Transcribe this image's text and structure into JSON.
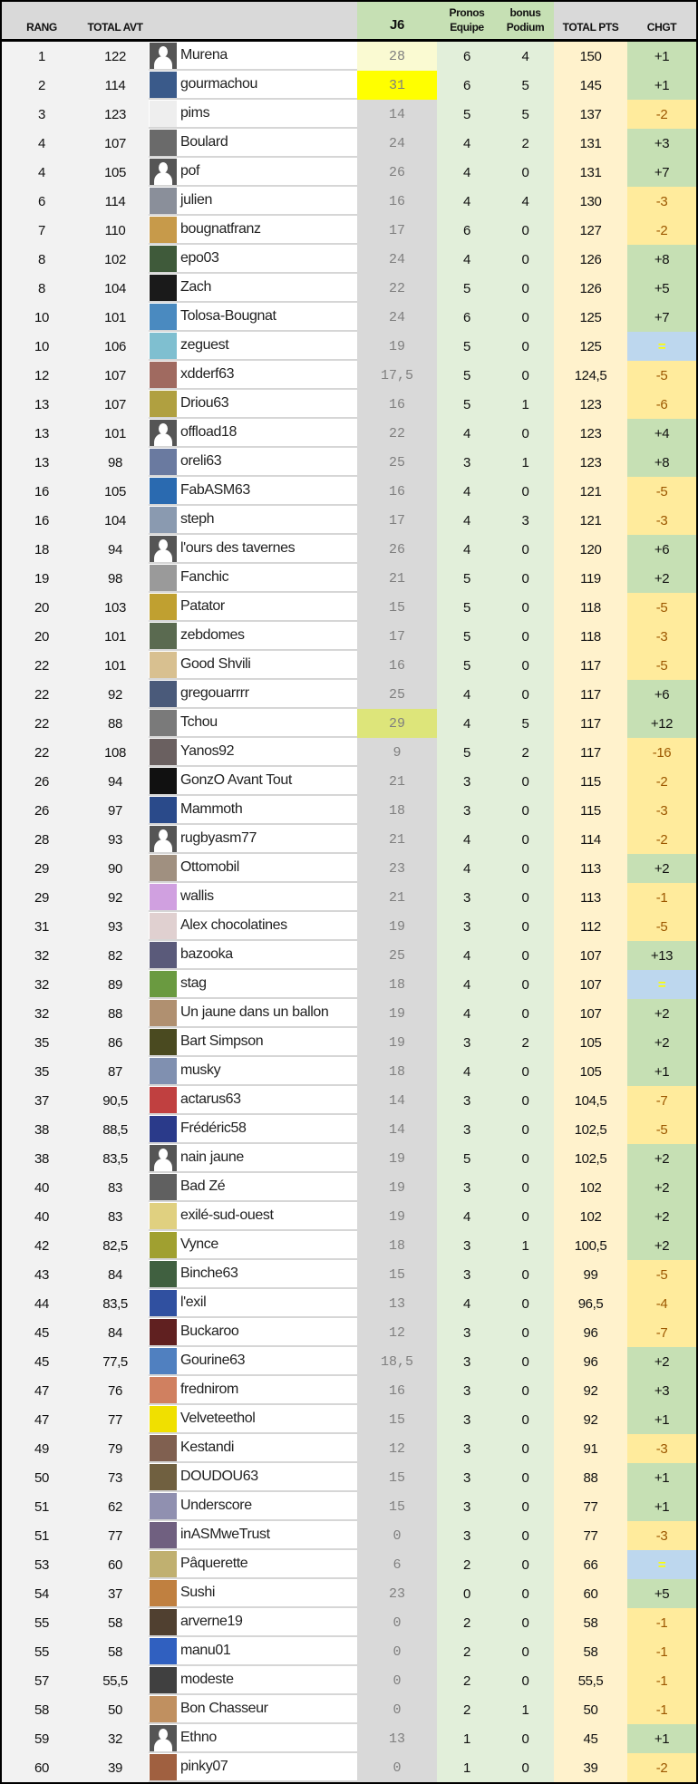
{
  "header": {
    "rang": "RANG",
    "total_avt": "TOTAL AVT",
    "j6": "J6",
    "pronos": "Pronos Equipe",
    "bonus": "bonus Podium",
    "total_pts": "TOTAL PTS",
    "chgt": "CHGT"
  },
  "colors": {
    "j6_best": "#ffff00",
    "j6_second": "#fafad2",
    "j6_third": "#dde57a",
    "chgt_up": "#c6e0b4",
    "chgt_down": "#ffeb9c",
    "chgt_equal": "#bdd7ee"
  },
  "rows": [
    {
      "rang": "1",
      "avt": "122",
      "avatar": "default",
      "name": "Murena",
      "j6": "28",
      "j6_hl": "second",
      "pronos": "6",
      "bonus": "4",
      "total": "150",
      "chgt": "+1"
    },
    {
      "rang": "2",
      "avt": "114",
      "avatar": "#3a5a8a",
      "name": "gourmachou",
      "j6": "31",
      "j6_hl": "best",
      "pronos": "6",
      "bonus": "5",
      "total": "145",
      "chgt": "+1"
    },
    {
      "rang": "3",
      "avt": "123",
      "avatar": "#eeeeee",
      "name": "pims",
      "j6": "14",
      "pronos": "5",
      "bonus": "5",
      "total": "137",
      "chgt": "-2"
    },
    {
      "rang": "4",
      "avt": "107",
      "avatar": "#6a6a6a",
      "name": "Boulard",
      "j6": "24",
      "pronos": "4",
      "bonus": "2",
      "total": "131",
      "chgt": "+3"
    },
    {
      "rang": "4",
      "avt": "105",
      "avatar": "default",
      "name": "pof",
      "j6": "26",
      "pronos": "4",
      "bonus": "0",
      "total": "131",
      "chgt": "+7"
    },
    {
      "rang": "6",
      "avt": "114",
      "avatar": "#8a8f9a",
      "name": "julien",
      "j6": "16",
      "pronos": "4",
      "bonus": "4",
      "total": "130",
      "chgt": "-3"
    },
    {
      "rang": "7",
      "avt": "110",
      "avatar": "#c79a4a",
      "name": "bougnatfranz",
      "j6": "17",
      "pronos": "6",
      "bonus": "0",
      "total": "127",
      "chgt": "-2"
    },
    {
      "rang": "8",
      "avt": "102",
      "avatar": "#3f5a3a",
      "name": "epo03",
      "j6": "24",
      "pronos": "4",
      "bonus": "0",
      "total": "126",
      "chgt": "+8"
    },
    {
      "rang": "8",
      "avt": "104",
      "avatar": "#1a1a1a",
      "name": "Zach",
      "j6": "22",
      "pronos": "5",
      "bonus": "0",
      "total": "126",
      "chgt": "+5"
    },
    {
      "rang": "10",
      "avt": "101",
      "avatar": "#4a8ac0",
      "name": "Tolosa-Bougnat",
      "j6": "24",
      "pronos": "6",
      "bonus": "0",
      "total": "125",
      "chgt": "+7"
    },
    {
      "rang": "10",
      "avt": "106",
      "avatar": "#7fbfd0",
      "name": "zeguest",
      "j6": "19",
      "pronos": "5",
      "bonus": "0",
      "total": "125",
      "chgt": "="
    },
    {
      "rang": "12",
      "avt": "107",
      "avatar": "#a06a60",
      "name": "xdderf63",
      "j6": "17,5",
      "pronos": "5",
      "bonus": "0",
      "total": "124,5",
      "chgt": "-5"
    },
    {
      "rang": "13",
      "avt": "107",
      "avatar": "#b0a040",
      "name": "Driou63",
      "j6": "16",
      "pronos": "5",
      "bonus": "1",
      "total": "123",
      "chgt": "-6"
    },
    {
      "rang": "13",
      "avt": "101",
      "avatar": "default",
      "name": "offload18",
      "j6": "22",
      "pronos": "4",
      "bonus": "0",
      "total": "123",
      "chgt": "+4"
    },
    {
      "rang": "13",
      "avt": "98",
      "avatar": "#6a7aa0",
      "name": "oreli63",
      "j6": "25",
      "pronos": "3",
      "bonus": "1",
      "total": "123",
      "chgt": "+8"
    },
    {
      "rang": "16",
      "avt": "105",
      "avatar": "#2a6ab0",
      "name": "FabASM63",
      "j6": "16",
      "pronos": "4",
      "bonus": "0",
      "total": "121",
      "chgt": "-5"
    },
    {
      "rang": "16",
      "avt": "104",
      "avatar": "#8a9ab0",
      "name": "steph",
      "j6": "17",
      "pronos": "4",
      "bonus": "3",
      "total": "121",
      "chgt": "-3"
    },
    {
      "rang": "18",
      "avt": "94",
      "avatar": "default",
      "name": "l'ours des tavernes",
      "j6": "26",
      "pronos": "4",
      "bonus": "0",
      "total": "120",
      "chgt": "+6"
    },
    {
      "rang": "19",
      "avt": "98",
      "avatar": "#9a9a9a",
      "name": "Fanchic",
      "j6": "21",
      "pronos": "5",
      "bonus": "0",
      "total": "119",
      "chgt": "+2"
    },
    {
      "rang": "20",
      "avt": "103",
      "avatar": "#c0a030",
      "name": "Patator",
      "j6": "15",
      "pronos": "5",
      "bonus": "0",
      "total": "118",
      "chgt": "-5"
    },
    {
      "rang": "20",
      "avt": "101",
      "avatar": "#5a6a50",
      "name": "zebdomes",
      "j6": "17",
      "pronos": "5",
      "bonus": "0",
      "total": "118",
      "chgt": "-3"
    },
    {
      "rang": "22",
      "avt": "101",
      "avatar": "#d8c090",
      "name": "Good Shvili",
      "j6": "16",
      "pronos": "5",
      "bonus": "0",
      "total": "117",
      "chgt": "-5"
    },
    {
      "rang": "22",
      "avt": "92",
      "avatar": "#4a5a7a",
      "name": "gregouarrrr",
      "j6": "25",
      "pronos": "4",
      "bonus": "0",
      "total": "117",
      "chgt": "+6"
    },
    {
      "rang": "22",
      "avt": "88",
      "avatar": "#7a7a7a",
      "name": "Tchou",
      "j6": "29",
      "j6_hl": "third",
      "pronos": "4",
      "bonus": "5",
      "total": "117",
      "chgt": "+12"
    },
    {
      "rang": "22",
      "avt": "108",
      "avatar": "#6a6060",
      "name": "Yanos92",
      "j6": "9",
      "pronos": "5",
      "bonus": "2",
      "total": "117",
      "chgt": "-16"
    },
    {
      "rang": "26",
      "avt": "94",
      "avatar": "#111111",
      "name": "GonzO Avant Tout",
      "j6": "21",
      "pronos": "3",
      "bonus": "0",
      "total": "115",
      "chgt": "-2"
    },
    {
      "rang": "26",
      "avt": "97",
      "avatar": "#2a4a8a",
      "name": "Mammoth",
      "j6": "18",
      "pronos": "3",
      "bonus": "0",
      "total": "115",
      "chgt": "-3"
    },
    {
      "rang": "28",
      "avt": "93",
      "avatar": "default",
      "name": "rugbyasm77",
      "j6": "21",
      "pronos": "4",
      "bonus": "0",
      "total": "114",
      "chgt": "-2"
    },
    {
      "rang": "29",
      "avt": "90",
      "avatar": "#a09080",
      "name": "Ottomobil",
      "j6": "23",
      "pronos": "4",
      "bonus": "0",
      "total": "113",
      "chgt": "+2"
    },
    {
      "rang": "29",
      "avt": "92",
      "avatar": "#d0a0e0",
      "name": "wallis",
      "j6": "21",
      "pronos": "3",
      "bonus": "0",
      "total": "113",
      "chgt": "-1"
    },
    {
      "rang": "31",
      "avt": "93",
      "avatar": "#e0d0d0",
      "name": "Alex chocolatines",
      "j6": "19",
      "pronos": "3",
      "bonus": "0",
      "total": "112",
      "chgt": "-5"
    },
    {
      "rang": "32",
      "avt": "82",
      "avatar": "#5a5a7a",
      "name": "bazooka",
      "j6": "25",
      "pronos": "4",
      "bonus": "0",
      "total": "107",
      "chgt": "+13"
    },
    {
      "rang": "32",
      "avt": "89",
      "avatar": "#6a9a40",
      "name": "stag",
      "j6": "18",
      "pronos": "4",
      "bonus": "0",
      "total": "107",
      "chgt": "="
    },
    {
      "rang": "32",
      "avt": "88",
      "avatar": "#b09070",
      "name": "Un jaune dans un ballon",
      "j6": "19",
      "pronos": "4",
      "bonus": "0",
      "total": "107",
      "chgt": "+2"
    },
    {
      "rang": "35",
      "avt": "86",
      "avatar": "#4a4a20",
      "name": "Bart Simpson",
      "j6": "19",
      "pronos": "3",
      "bonus": "2",
      "total": "105",
      "chgt": "+2"
    },
    {
      "rang": "35",
      "avt": "87",
      "avatar": "#8090b0",
      "name": "musky",
      "j6": "18",
      "pronos": "4",
      "bonus": "0",
      "total": "105",
      "chgt": "+1"
    },
    {
      "rang": "37",
      "avt": "90,5",
      "avatar": "#c04040",
      "name": "actarus63",
      "j6": "14",
      "pronos": "3",
      "bonus": "0",
      "total": "104,5",
      "chgt": "-7"
    },
    {
      "rang": "38",
      "avt": "88,5",
      "avatar": "#2a3a8a",
      "name": "Frédéric58",
      "j6": "14",
      "pronos": "3",
      "bonus": "0",
      "total": "102,5",
      "chgt": "-5"
    },
    {
      "rang": "38",
      "avt": "83,5",
      "avatar": "default",
      "name": "nain jaune",
      "j6": "19",
      "pronos": "5",
      "bonus": "0",
      "total": "102,5",
      "chgt": "+2"
    },
    {
      "rang": "40",
      "avt": "83",
      "avatar": "#606060",
      "name": "Bad Zé",
      "j6": "19",
      "pronos": "3",
      "bonus": "0",
      "total": "102",
      "chgt": "+2"
    },
    {
      "rang": "40",
      "avt": "83",
      "avatar": "#e0d080",
      "name": "exilé-sud-ouest",
      "j6": "19",
      "pronos": "4",
      "bonus": "0",
      "total": "102",
      "chgt": "+2"
    },
    {
      "rang": "42",
      "avt": "82,5",
      "avatar": "#a0a030",
      "name": "Vynce",
      "j6": "18",
      "pronos": "3",
      "bonus": "1",
      "total": "100,5",
      "chgt": "+2"
    },
    {
      "rang": "43",
      "avt": "84",
      "avatar": "#406040",
      "name": "Binche63",
      "j6": "15",
      "pronos": "3",
      "bonus": "0",
      "total": "99",
      "chgt": "-5"
    },
    {
      "rang": "44",
      "avt": "83,5",
      "avatar": "#3050a0",
      "name": "l'exil",
      "j6": "13",
      "pronos": "4",
      "bonus": "0",
      "total": "96,5",
      "chgt": "-4"
    },
    {
      "rang": "45",
      "avt": "84",
      "avatar": "#602020",
      "name": "Buckaroo",
      "j6": "12",
      "pronos": "3",
      "bonus": "0",
      "total": "96",
      "chgt": "-7"
    },
    {
      "rang": "45",
      "avt": "77,5",
      "avatar": "#5080c0",
      "name": "Gourine63",
      "j6": "18,5",
      "pronos": "3",
      "bonus": "0",
      "total": "96",
      "chgt": "+2"
    },
    {
      "rang": "47",
      "avt": "76",
      "avatar": "#d08060",
      "name": "frednirom",
      "j6": "16",
      "pronos": "3",
      "bonus": "0",
      "total": "92",
      "chgt": "+3"
    },
    {
      "rang": "47",
      "avt": "77",
      "avatar": "#f0e000",
      "name": "Velveteethol",
      "j6": "15",
      "pronos": "3",
      "bonus": "0",
      "total": "92",
      "chgt": "+1"
    },
    {
      "rang": "49",
      "avt": "79",
      "avatar": "#806050",
      "name": "Kestandi",
      "j6": "12",
      "pronos": "3",
      "bonus": "0",
      "total": "91",
      "chgt": "-3"
    },
    {
      "rang": "50",
      "avt": "73",
      "avatar": "#706040",
      "name": "DOUDOU63",
      "j6": "15",
      "pronos": "3",
      "bonus": "0",
      "total": "88",
      "chgt": "+1"
    },
    {
      "rang": "51",
      "avt": "62",
      "avatar": "#9090b0",
      "name": "Underscore",
      "j6": "15",
      "pronos": "3",
      "bonus": "0",
      "total": "77",
      "chgt": "+1"
    },
    {
      "rang": "51",
      "avt": "77",
      "avatar": "#706080",
      "name": "inASMweTrust",
      "j6": "0",
      "pronos": "3",
      "bonus": "0",
      "total": "77",
      "chgt": "-3"
    },
    {
      "rang": "53",
      "avt": "60",
      "avatar": "#c0b070",
      "name": "Pâquerette",
      "j6": "6",
      "pronos": "2",
      "bonus": "0",
      "total": "66",
      "chgt": "="
    },
    {
      "rang": "54",
      "avt": "37",
      "avatar": "#c08040",
      "name": "Sushi",
      "j6": "23",
      "pronos": "0",
      "bonus": "0",
      "total": "60",
      "chgt": "+5"
    },
    {
      "rang": "55",
      "avt": "58",
      "avatar": "#504030",
      "name": "arverne19",
      "j6": "0",
      "pronos": "2",
      "bonus": "0",
      "total": "58",
      "chgt": "-1"
    },
    {
      "rang": "55",
      "avt": "58",
      "avatar": "#3060c0",
      "name": "manu01",
      "j6": "0",
      "pronos": "2",
      "bonus": "0",
      "total": "58",
      "chgt": "-1"
    },
    {
      "rang": "57",
      "avt": "55,5",
      "avatar": "#404040",
      "name": "modeste",
      "j6": "0",
      "pronos": "2",
      "bonus": "0",
      "total": "55,5",
      "chgt": "-1"
    },
    {
      "rang": "58",
      "avt": "50",
      "avatar": "#c09060",
      "name": "Bon Chasseur",
      "j6": "0",
      "pronos": "2",
      "bonus": "1",
      "total": "50",
      "chgt": "-1"
    },
    {
      "rang": "59",
      "avt": "32",
      "avatar": "default",
      "name": "Ethno",
      "j6": "13",
      "pronos": "1",
      "bonus": "0",
      "total": "45",
      "chgt": "+1"
    },
    {
      "rang": "60",
      "avt": "39",
      "avatar": "#a06040",
      "name": "pinky07",
      "j6": "0",
      "pronos": "1",
      "bonus": "0",
      "total": "39",
      "chgt": "-2"
    }
  ]
}
